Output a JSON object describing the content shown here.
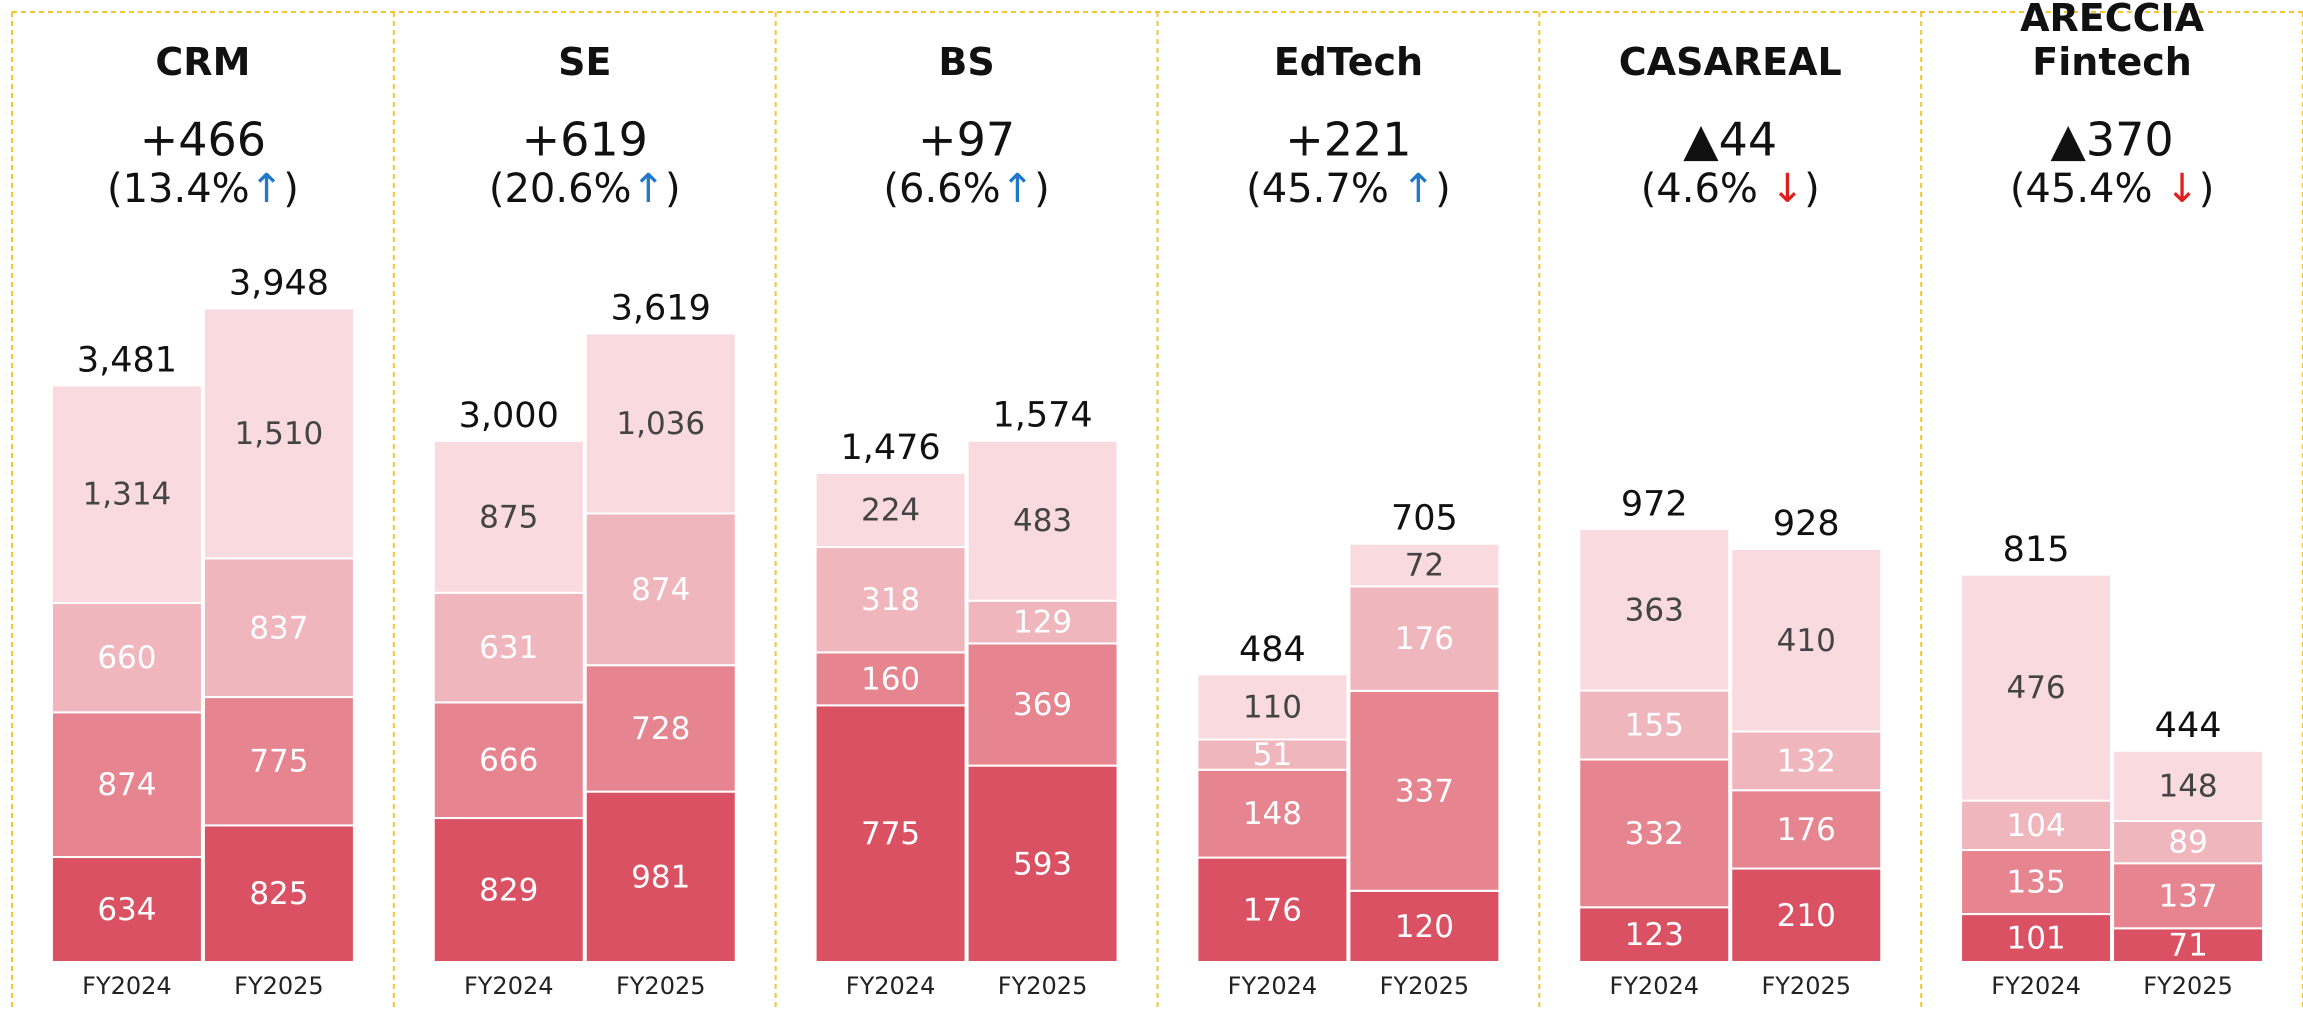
{
  "chart_data": [
    {
      "type": "bar",
      "title": "CRM",
      "change": "+466",
      "change_rate": [
        "(13.4%",
        "↑",
        ")"
      ],
      "arrow_color": "#1f78c8",
      "categories": [
        "FY2024",
        "FY2025"
      ],
      "ylim": [
        0,
        4300
      ],
      "series": [
        {
          "color": "#d95163",
          "label_color": "#ffffff",
          "values": [
            634,
            825
          ]
        },
        {
          "color": "#e6858f",
          "label_color": "#ffffff",
          "values": [
            874,
            775
          ]
        },
        {
          "color": "#f0b6bd",
          "label_color": "#ffffff",
          "values": [
            660,
            837
          ]
        },
        {
          "color": "#f8dadf",
          "label_color": "#444444",
          "values": [
            1314,
            1510
          ],
          "value_labels": [
            "1,314",
            "1,510"
          ]
        }
      ],
      "totals": [
        3481,
        3948
      ],
      "total_labels": [
        "3,481",
        "3,948"
      ]
    },
    {
      "type": "bar",
      "title": "SE",
      "change": "+619",
      "change_rate": [
        "(20.6%",
        "↑",
        ")"
      ],
      "arrow_color": "#1f78c8",
      "categories": [
        "FY2024",
        "FY2025"
      ],
      "ylim": [
        0,
        4100
      ],
      "series": [
        {
          "color": "#d95163",
          "label_color": "#ffffff",
          "values": [
            829,
            981
          ]
        },
        {
          "color": "#e6858f",
          "label_color": "#ffffff",
          "values": [
            666,
            728
          ]
        },
        {
          "color": "#f0b6bd",
          "label_color": "#ffffff",
          "values": [
            631,
            874
          ]
        },
        {
          "color": "#f8dadf",
          "label_color": "#444444",
          "values": [
            875,
            1036
          ],
          "value_labels": [
            "875",
            "1,036"
          ]
        }
      ],
      "totals": [
        3000,
        3619
      ],
      "total_labels": [
        "3,000",
        "3,619"
      ]
    },
    {
      "type": "bar",
      "title": "BS",
      "change": "+97",
      "change_rate": [
        "(6.6%",
        "↑",
        ")"
      ],
      "arrow_color": "#1f78c8",
      "categories": [
        "FY2024",
        "FY2025"
      ],
      "ylim": [
        0,
        2150
      ],
      "series": [
        {
          "color": "#d95163",
          "label_color": "#ffffff",
          "values": [
            775,
            593
          ]
        },
        {
          "color": "#e6858f",
          "label_color": "#ffffff",
          "values": [
            160,
            369
          ]
        },
        {
          "color": "#f0b6bd",
          "label_color": "#ffffff",
          "values": [
            318,
            129
          ]
        },
        {
          "color": "#f8dadf",
          "label_color": "#444444",
          "values": [
            224,
            483
          ]
        }
      ],
      "totals": [
        1476,
        1574
      ],
      "total_labels": [
        "1,476",
        "1,574"
      ]
    },
    {
      "type": "bar",
      "title": "EdTech",
      "change": "+221",
      "change_rate": [
        "(45.7% ",
        "↑",
        ")"
      ],
      "arrow_color": "#1f78c8",
      "categories": [
        "FY2024",
        "FY2025"
      ],
      "ylim": [
        0,
        1200
      ],
      "series": [
        {
          "color": "#d95163",
          "label_color": "#ffffff",
          "values": [
            176,
            120
          ]
        },
        {
          "color": "#e6858f",
          "label_color": "#ffffff",
          "values": [
            148,
            337
          ]
        },
        {
          "color": "#f0b6bd",
          "label_color": "#ffffff",
          "values": [
            51,
            176
          ]
        },
        {
          "color": "#f8dadf",
          "label_color": "#444444",
          "values": [
            110,
            72
          ]
        }
      ],
      "totals": [
        484,
        705
      ]
    },
    {
      "type": "bar",
      "title": "CASAREAL",
      "change": "▲44",
      "change_rate": [
        "(4.6% ",
        "↓",
        ")"
      ],
      "arrow_color": "#e02020",
      "categories": [
        "FY2024",
        "FY2025"
      ],
      "ylim": [
        0,
        1600
      ],
      "series": [
        {
          "color": "#d95163",
          "label_color": "#ffffff",
          "values": [
            123,
            210
          ]
        },
        {
          "color": "#e6858f",
          "label_color": "#ffffff",
          "values": [
            332,
            176
          ]
        },
        {
          "color": "#f0b6bd",
          "label_color": "#ffffff",
          "values": [
            155,
            132
          ]
        },
        {
          "color": "#f8dadf",
          "label_color": "#444444",
          "values": [
            363,
            410
          ]
        }
      ],
      "totals": [
        972,
        928
      ]
    },
    {
      "type": "bar",
      "title": "ARECCIA Fintech",
      "change": "▲370",
      "change_rate": [
        "(45.4% ",
        "↓",
        ")"
      ],
      "arrow_color": "#e02020",
      "categories": [
        "FY2024",
        "FY2025"
      ],
      "ylim": [
        0,
        1500
      ],
      "series": [
        {
          "color": "#d95163",
          "label_color": "#ffffff",
          "values": [
            101,
            71
          ]
        },
        {
          "color": "#e6858f",
          "label_color": "#ffffff",
          "values": [
            135,
            137
          ]
        },
        {
          "color": "#f0b6bd",
          "label_color": "#ffffff",
          "values": [
            104,
            89
          ]
        },
        {
          "color": "#f8dadf",
          "label_color": "#444444",
          "values": [
            476,
            148
          ]
        }
      ],
      "totals": [
        815,
        444
      ]
    }
  ]
}
